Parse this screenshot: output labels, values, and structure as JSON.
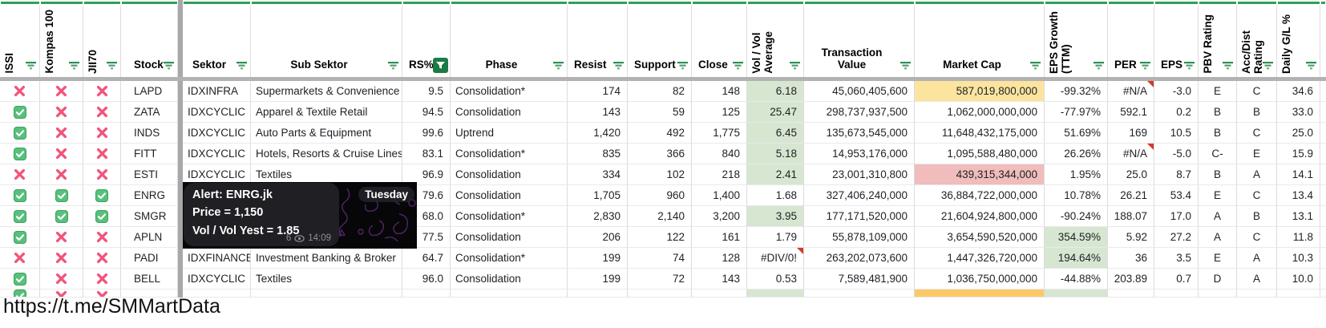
{
  "page": {
    "footer_link": "https://t.me/SMMartData"
  },
  "colors": {
    "accent_green": "#2ea157",
    "filter_green": "#2f8f54",
    "active_filter_bg": "#1c7a45",
    "check_green": "#57c17b",
    "cross_pink": "#f0557c",
    "highlight_green": "#d7e6d1",
    "highlight_yellow": "#fde49e",
    "highlight_red": "#f0bcbc",
    "highlight_orange": "#fdc968"
  },
  "header": {
    "columns": [
      {
        "key": "issi",
        "label": "ISSI",
        "orientation": "vertical",
        "filter": "lines"
      },
      {
        "key": "kompas",
        "label": "Kompas 100",
        "orientation": "vertical",
        "filter": "lines"
      },
      {
        "key": "jii70",
        "label": "JII70",
        "orientation": "vertical",
        "filter": "lines"
      },
      {
        "key": "stock",
        "label": "Stock",
        "orientation": "horizontal",
        "align": "left",
        "filter": "lines"
      },
      {
        "key": "div",
        "label": "",
        "orientation": "none",
        "filter": null
      },
      {
        "key": "sektor",
        "label": "Sektor",
        "orientation": "horizontal",
        "align": "center",
        "filter": "lines"
      },
      {
        "key": "sub",
        "label": "Sub Sektor",
        "orientation": "horizontal",
        "align": "center",
        "filter": "lines"
      },
      {
        "key": "rs",
        "label": "RS%",
        "orientation": "horizontal",
        "align": "left",
        "filter": "button"
      },
      {
        "key": "phase",
        "label": "Phase",
        "orientation": "horizontal",
        "align": "center",
        "filter": "lines"
      },
      {
        "key": "resist",
        "label": "Resist",
        "orientation": "horizontal",
        "align": "left",
        "filter": "lines"
      },
      {
        "key": "support",
        "label": "Support",
        "orientation": "horizontal",
        "align": "left",
        "filter": "lines"
      },
      {
        "key": "close",
        "label": "Close",
        "orientation": "horizontal",
        "align": "left",
        "filter": "lines"
      },
      {
        "key": "vol",
        "label": "Vol / Vol\nAverage",
        "orientation": "vertical",
        "filter": "lines"
      },
      {
        "key": "txn",
        "label": "Transaction\nValue",
        "orientation": "horizontal",
        "align": "center",
        "filter": "lines"
      },
      {
        "key": "mcap",
        "label": "Market Cap",
        "orientation": "horizontal",
        "align": "center",
        "filter": "lines"
      },
      {
        "key": "growth",
        "label": "EPS Growth\n(TTM)",
        "orientation": "vertical",
        "filter": "lines"
      },
      {
        "key": "per",
        "label": "PER",
        "orientation": "horizontal",
        "align": "left",
        "filter": "lines"
      },
      {
        "key": "eps",
        "label": "EPS",
        "orientation": "horizontal",
        "align": "left",
        "filter": "lines"
      },
      {
        "key": "pbv",
        "label": "PBV Rating",
        "orientation": "vertical",
        "filter": "lines"
      },
      {
        "key": "acc",
        "label": "Acc/Dist\nRating",
        "orientation": "vertical",
        "filter": "lines"
      },
      {
        "key": "daily",
        "label": "Daily G/L %",
        "orientation": "vertical",
        "filter": "lines"
      },
      {
        "key": "sliver",
        "label": "",
        "orientation": "none",
        "filter": null
      }
    ]
  },
  "table": {
    "rows": [
      {
        "issi": "x",
        "kompas": "x",
        "jii70": "x",
        "stock": "LAPD",
        "sektor": "IDXINFRA",
        "sub": "Supermarkets & Convenience",
        "rs": "9.5",
        "phase": "Consolidation*",
        "resist": "174",
        "support": "82",
        "close": "148",
        "vol": "6.18",
        "vol_hl": "green",
        "txn": "45,060,405,600",
        "mcap": "587,019,800,000",
        "mcap_hl": "yellow",
        "growth": "-99.32%",
        "per": "#N/A",
        "per_note": true,
        "eps": "-3.0",
        "pbv": "E",
        "acc": "C",
        "daily": "34.6"
      },
      {
        "issi": "check",
        "kompas": "x",
        "jii70": "x",
        "stock": "ZATA",
        "sektor": "IDXCYCLIC",
        "sub": "Apparel & Textile Retail",
        "rs": "94.5",
        "phase": "Consolidation",
        "resist": "143",
        "support": "59",
        "close": "125",
        "vol": "25.47",
        "vol_hl": "green",
        "txn": "298,737,937,500",
        "mcap": "1,062,000,000,000",
        "growth": "-77.97%",
        "per": "592.1",
        "eps": "0.2",
        "pbv": "B",
        "acc": "B",
        "daily": "33.0"
      },
      {
        "issi": "check",
        "kompas": "x",
        "jii70": "x",
        "stock": "INDS",
        "sektor": "IDXCYCLIC",
        "sub": "Auto Parts & Equipment",
        "rs": "99.6",
        "phase": "Uptrend",
        "resist": "1,420",
        "support": "492",
        "close": "1,775",
        "vol": "6.45",
        "vol_hl": "green",
        "txn": "135,673,545,000",
        "mcap": "11,648,432,175,000",
        "growth": "51.69%",
        "per": "169",
        "eps": "10.5",
        "pbv": "B",
        "acc": "C",
        "daily": "25.0"
      },
      {
        "issi": "check",
        "kompas": "x",
        "jii70": "x",
        "stock": "FITT",
        "sektor": "IDXCYCLIC",
        "sub": "Hotels, Resorts & Cruise Lines",
        "rs": "83.1",
        "phase": "Consolidation*",
        "resist": "835",
        "support": "366",
        "close": "840",
        "vol": "5.18",
        "vol_hl": "green",
        "txn": "14,953,176,000",
        "mcap": "1,095,588,480,000",
        "growth": "26.26%",
        "per": "#N/A",
        "per_note": true,
        "eps": "-5.0",
        "pbv": "C-",
        "acc": "E",
        "daily": "15.9"
      },
      {
        "issi": "x",
        "kompas": "x",
        "jii70": "x",
        "stock": "ESTI",
        "sektor": "IDXCYCLIC",
        "sub": "Textiles",
        "rs": "96.9",
        "phase": "Consolidation",
        "resist": "334",
        "support": "102",
        "close": "218",
        "vol": "2.41",
        "vol_hl": "green",
        "txn": "23,001,310,800",
        "mcap": "439,315,344,000",
        "mcap_hl": "red",
        "growth": "1.95%",
        "per": "25.0",
        "eps": "8.7",
        "pbv": "B",
        "acc": "A",
        "daily": "14.1"
      },
      {
        "issi": "check",
        "kompas": "check",
        "jii70": "check",
        "stock": "ENRG",
        "sektor": "",
        "sub": "",
        "rs": "79.6",
        "phase": "Consolidation",
        "resist": "1,705",
        "support": "960",
        "close": "1,400",
        "vol": "1.68",
        "txn": "327,406,240,000",
        "mcap": "36,884,722,000,000",
        "growth": "10.78%",
        "per": "26.21",
        "eps": "53.4",
        "pbv": "E",
        "acc": "C",
        "daily": "13.4"
      },
      {
        "issi": "check",
        "kompas": "check",
        "jii70": "check",
        "stock": "SMGR",
        "sektor": "",
        "sub": "",
        "rs": "68.0",
        "phase": "Consolidation*",
        "resist": "2,830",
        "support": "2,140",
        "close": "3,200",
        "vol": "3.95",
        "vol_hl": "green",
        "txn": "177,171,520,000",
        "mcap": "21,604,924,800,000",
        "growth": "-90.24%",
        "per": "188.07",
        "eps": "17.0",
        "pbv": "A",
        "acc": "B",
        "daily": "13.1"
      },
      {
        "issi": "check",
        "kompas": "x",
        "jii70": "x",
        "stock": "APLN",
        "sektor": "",
        "sub": "",
        "rs": "77.5",
        "phase": "Consolidation",
        "resist": "206",
        "support": "122",
        "close": "161",
        "vol": "1.79",
        "txn": "55,878,109,000",
        "mcap": "3,654,590,520,000",
        "growth": "354.59%",
        "growth_hl": "green",
        "per": "5.92",
        "eps": "27.2",
        "pbv": "A",
        "acc": "C",
        "daily": "11.8"
      },
      {
        "issi": "x",
        "kompas": "x",
        "jii70": "x",
        "stock": "PADI",
        "sektor": "IDXFINANCE",
        "sub": "Investment Banking & Broker",
        "rs": "64.7",
        "phase": "Consolidation*",
        "resist": "199",
        "support": "74",
        "close": "128",
        "vol": "#DIV/0!",
        "vol_note": true,
        "txn": "263,202,073,600",
        "mcap": "1,447,326,720,000",
        "growth": "194.64%",
        "growth_hl": "green",
        "per": "36",
        "eps": "3.5",
        "pbv": "E",
        "acc": "A",
        "daily": "10.3"
      },
      {
        "issi": "check",
        "kompas": "x",
        "jii70": "x",
        "stock": "BELL",
        "sektor": "IDXCYCLIC",
        "sub": "Textiles",
        "rs": "96.0",
        "phase": "Consolidation",
        "resist": "199",
        "support": "72",
        "close": "143",
        "vol": "0.53",
        "txn": "7,589,481,900",
        "mcap": "1,036,750,000,000",
        "growth": "-44.88%",
        "per": "203.89",
        "eps": "0.7",
        "pbv": "D",
        "acc": "A",
        "daily": "10.0"
      },
      {
        "issi": "check",
        "kompas": "x",
        "jii70": "x",
        "stock": "",
        "sektor": "",
        "sub": "",
        "rs": "",
        "phase": "",
        "resist": "",
        "support": "",
        "close": "",
        "vol": "",
        "vol_hl": "green",
        "txn": "",
        "mcap": "",
        "mcap_hl": "orange",
        "growth": "",
        "growth_hl": "green",
        "per": "",
        "eps": "",
        "pbv": "",
        "acc": "",
        "daily": "",
        "partial": true
      }
    ]
  },
  "overlay": {
    "alert": "Alert: ENRG.jk",
    "price": "Price = 1,150",
    "vol": "Vol / Vol Yest = 1.85",
    "views": "6",
    "time": "14:09",
    "date_chip": "Tuesday"
  }
}
